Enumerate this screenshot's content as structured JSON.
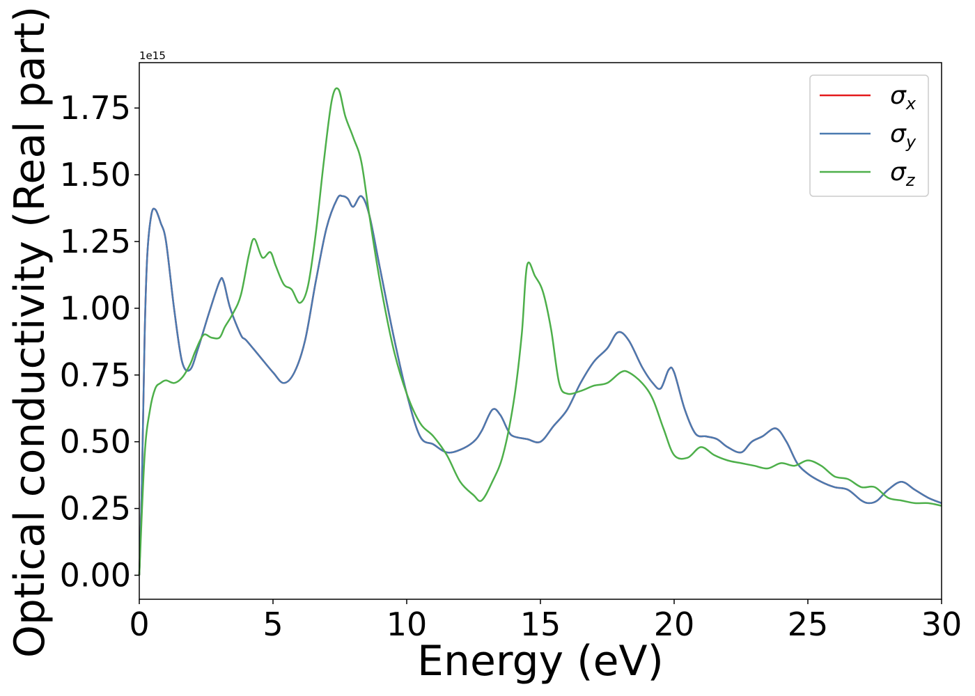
{
  "chart_data": {
    "type": "line",
    "xlabel": "Energy (eV)",
    "ylabel": "Optical conductivity (Real part)",
    "y_offset_label": "1e15",
    "xlim": [
      0,
      30
    ],
    "ylim": [
      -0.09,
      1.92
    ],
    "x_ticks": [
      0,
      5,
      10,
      15,
      20,
      25,
      30
    ],
    "x_tick_labels": [
      "0",
      "5",
      "10",
      "15",
      "20",
      "25",
      "30"
    ],
    "y_ticks": [
      0.0,
      0.25,
      0.5,
      0.75,
      1.0,
      1.25,
      1.5,
      1.75
    ],
    "y_tick_labels": [
      "0.00",
      "0.25",
      "0.50",
      "0.75",
      "1.00",
      "1.25",
      "1.50",
      "1.75"
    ],
    "grid": false,
    "legend_position": "top-right",
    "legend": [
      {
        "symbol": "σ",
        "sub": "x",
        "color": "#e41a1c"
      },
      {
        "symbol": "σ",
        "sub": "y",
        "color": "#4a7ab0"
      },
      {
        "symbol": "σ",
        "sub": "z",
        "color": "#4daf4a"
      }
    ],
    "series": [
      {
        "name": "σx",
        "color": "#e41a1c",
        "x": [
          0,
          0.1,
          0.2,
          0.3,
          0.45,
          0.6,
          0.8,
          1.0,
          1.3,
          1.6,
          1.9,
          2.2,
          2.6,
          3.0,
          3.15,
          3.4,
          3.8,
          4.0,
          4.5,
          5.0,
          5.4,
          5.8,
          6.2,
          6.6,
          7.0,
          7.4,
          7.6,
          7.8,
          8.0,
          8.3,
          8.6,
          9.0,
          9.5,
          10.0,
          10.5,
          11.0,
          11.5,
          12.0,
          12.5,
          12.8,
          13.2,
          13.5,
          13.8,
          14.0,
          14.5,
          15.0,
          15.5,
          16.0,
          16.5,
          17.0,
          17.5,
          17.9,
          18.3,
          18.8,
          19.2,
          19.5,
          19.8,
          20.0,
          20.4,
          20.8,
          21.2,
          21.6,
          22.0,
          22.5,
          22.9,
          23.3,
          23.8,
          24.2,
          24.6,
          25.0,
          25.5,
          26.0,
          26.5,
          27.0,
          27.3,
          27.6,
          28.0,
          28.5,
          29.0,
          29.5,
          30.0
        ],
        "y": [
          0.0,
          0.35,
          0.9,
          1.2,
          1.35,
          1.37,
          1.32,
          1.25,
          1.0,
          0.8,
          0.77,
          0.85,
          0.98,
          1.1,
          1.1,
          1.0,
          0.9,
          0.88,
          0.82,
          0.76,
          0.72,
          0.76,
          0.88,
          1.1,
          1.3,
          1.41,
          1.42,
          1.41,
          1.38,
          1.42,
          1.35,
          1.15,
          0.9,
          0.68,
          0.52,
          0.49,
          0.46,
          0.47,
          0.5,
          0.54,
          0.62,
          0.6,
          0.54,
          0.52,
          0.51,
          0.5,
          0.56,
          0.62,
          0.72,
          0.8,
          0.85,
          0.91,
          0.88,
          0.78,
          0.72,
          0.7,
          0.77,
          0.76,
          0.62,
          0.53,
          0.52,
          0.51,
          0.48,
          0.46,
          0.5,
          0.52,
          0.55,
          0.5,
          0.42,
          0.38,
          0.35,
          0.33,
          0.32,
          0.28,
          0.27,
          0.28,
          0.32,
          0.35,
          0.32,
          0.29,
          0.27
        ]
      },
      {
        "name": "σy",
        "color": "#4a7ab0",
        "x": [
          0,
          0.1,
          0.2,
          0.3,
          0.45,
          0.6,
          0.8,
          1.0,
          1.3,
          1.6,
          1.9,
          2.2,
          2.6,
          3.0,
          3.15,
          3.4,
          3.8,
          4.0,
          4.5,
          5.0,
          5.4,
          5.8,
          6.2,
          6.6,
          7.0,
          7.4,
          7.6,
          7.8,
          8.0,
          8.3,
          8.6,
          9.0,
          9.5,
          10.0,
          10.5,
          11.0,
          11.5,
          12.0,
          12.5,
          12.8,
          13.2,
          13.5,
          13.8,
          14.0,
          14.5,
          15.0,
          15.5,
          16.0,
          16.5,
          17.0,
          17.5,
          17.9,
          18.3,
          18.8,
          19.2,
          19.5,
          19.8,
          20.0,
          20.4,
          20.8,
          21.2,
          21.6,
          22.0,
          22.5,
          22.9,
          23.3,
          23.8,
          24.2,
          24.6,
          25.0,
          25.5,
          26.0,
          26.5,
          27.0,
          27.3,
          27.6,
          28.0,
          28.5,
          29.0,
          29.5,
          30.0
        ],
        "y": [
          0.0,
          0.35,
          0.9,
          1.2,
          1.35,
          1.37,
          1.32,
          1.25,
          1.0,
          0.8,
          0.77,
          0.85,
          0.98,
          1.1,
          1.1,
          1.0,
          0.9,
          0.88,
          0.82,
          0.76,
          0.72,
          0.76,
          0.88,
          1.1,
          1.3,
          1.41,
          1.42,
          1.41,
          1.38,
          1.42,
          1.35,
          1.15,
          0.9,
          0.68,
          0.52,
          0.49,
          0.46,
          0.47,
          0.5,
          0.54,
          0.62,
          0.6,
          0.54,
          0.52,
          0.51,
          0.5,
          0.56,
          0.62,
          0.72,
          0.8,
          0.85,
          0.91,
          0.88,
          0.78,
          0.72,
          0.7,
          0.77,
          0.76,
          0.62,
          0.53,
          0.52,
          0.51,
          0.48,
          0.46,
          0.5,
          0.52,
          0.55,
          0.5,
          0.42,
          0.38,
          0.35,
          0.33,
          0.32,
          0.28,
          0.27,
          0.28,
          0.32,
          0.35,
          0.32,
          0.29,
          0.27
        ]
      },
      {
        "name": "σz",
        "color": "#4daf4a",
        "x": [
          0,
          0.2,
          0.4,
          0.6,
          0.8,
          1.0,
          1.3,
          1.6,
          1.9,
          2.1,
          2.4,
          2.7,
          3.0,
          3.2,
          3.5,
          3.8,
          4.1,
          4.3,
          4.6,
          4.9,
          5.1,
          5.4,
          5.7,
          6.0,
          6.3,
          6.6,
          6.9,
          7.2,
          7.45,
          7.7,
          8.0,
          8.3,
          8.6,
          9.0,
          9.5,
          10.0,
          10.5,
          11.0,
          11.5,
          12.0,
          12.5,
          12.8,
          13.2,
          13.6,
          14.0,
          14.3,
          14.5,
          14.8,
          15.1,
          15.4,
          15.7,
          16.0,
          16.5,
          17.0,
          17.5,
          18.0,
          18.3,
          18.8,
          19.2,
          19.6,
          20.0,
          20.5,
          21.0,
          21.5,
          22.0,
          22.5,
          23.0,
          23.5,
          24.0,
          24.5,
          25.0,
          25.5,
          26.0,
          26.5,
          27.0,
          27.5,
          28.0,
          28.5,
          29.0,
          29.5,
          30.0
        ],
        "y": [
          0.0,
          0.45,
          0.62,
          0.7,
          0.72,
          0.73,
          0.72,
          0.74,
          0.79,
          0.84,
          0.9,
          0.89,
          0.89,
          0.93,
          0.98,
          1.05,
          1.2,
          1.26,
          1.19,
          1.21,
          1.16,
          1.09,
          1.07,
          1.02,
          1.08,
          1.28,
          1.55,
          1.78,
          1.82,
          1.72,
          1.64,
          1.55,
          1.35,
          1.1,
          0.85,
          0.68,
          0.57,
          0.52,
          0.45,
          0.35,
          0.3,
          0.28,
          0.35,
          0.45,
          0.65,
          0.9,
          1.16,
          1.12,
          1.06,
          0.92,
          0.72,
          0.68,
          0.69,
          0.71,
          0.72,
          0.76,
          0.76,
          0.72,
          0.66,
          0.55,
          0.45,
          0.44,
          0.48,
          0.45,
          0.43,
          0.42,
          0.41,
          0.4,
          0.42,
          0.41,
          0.43,
          0.41,
          0.37,
          0.36,
          0.33,
          0.33,
          0.29,
          0.28,
          0.27,
          0.27,
          0.26
        ]
      }
    ]
  }
}
